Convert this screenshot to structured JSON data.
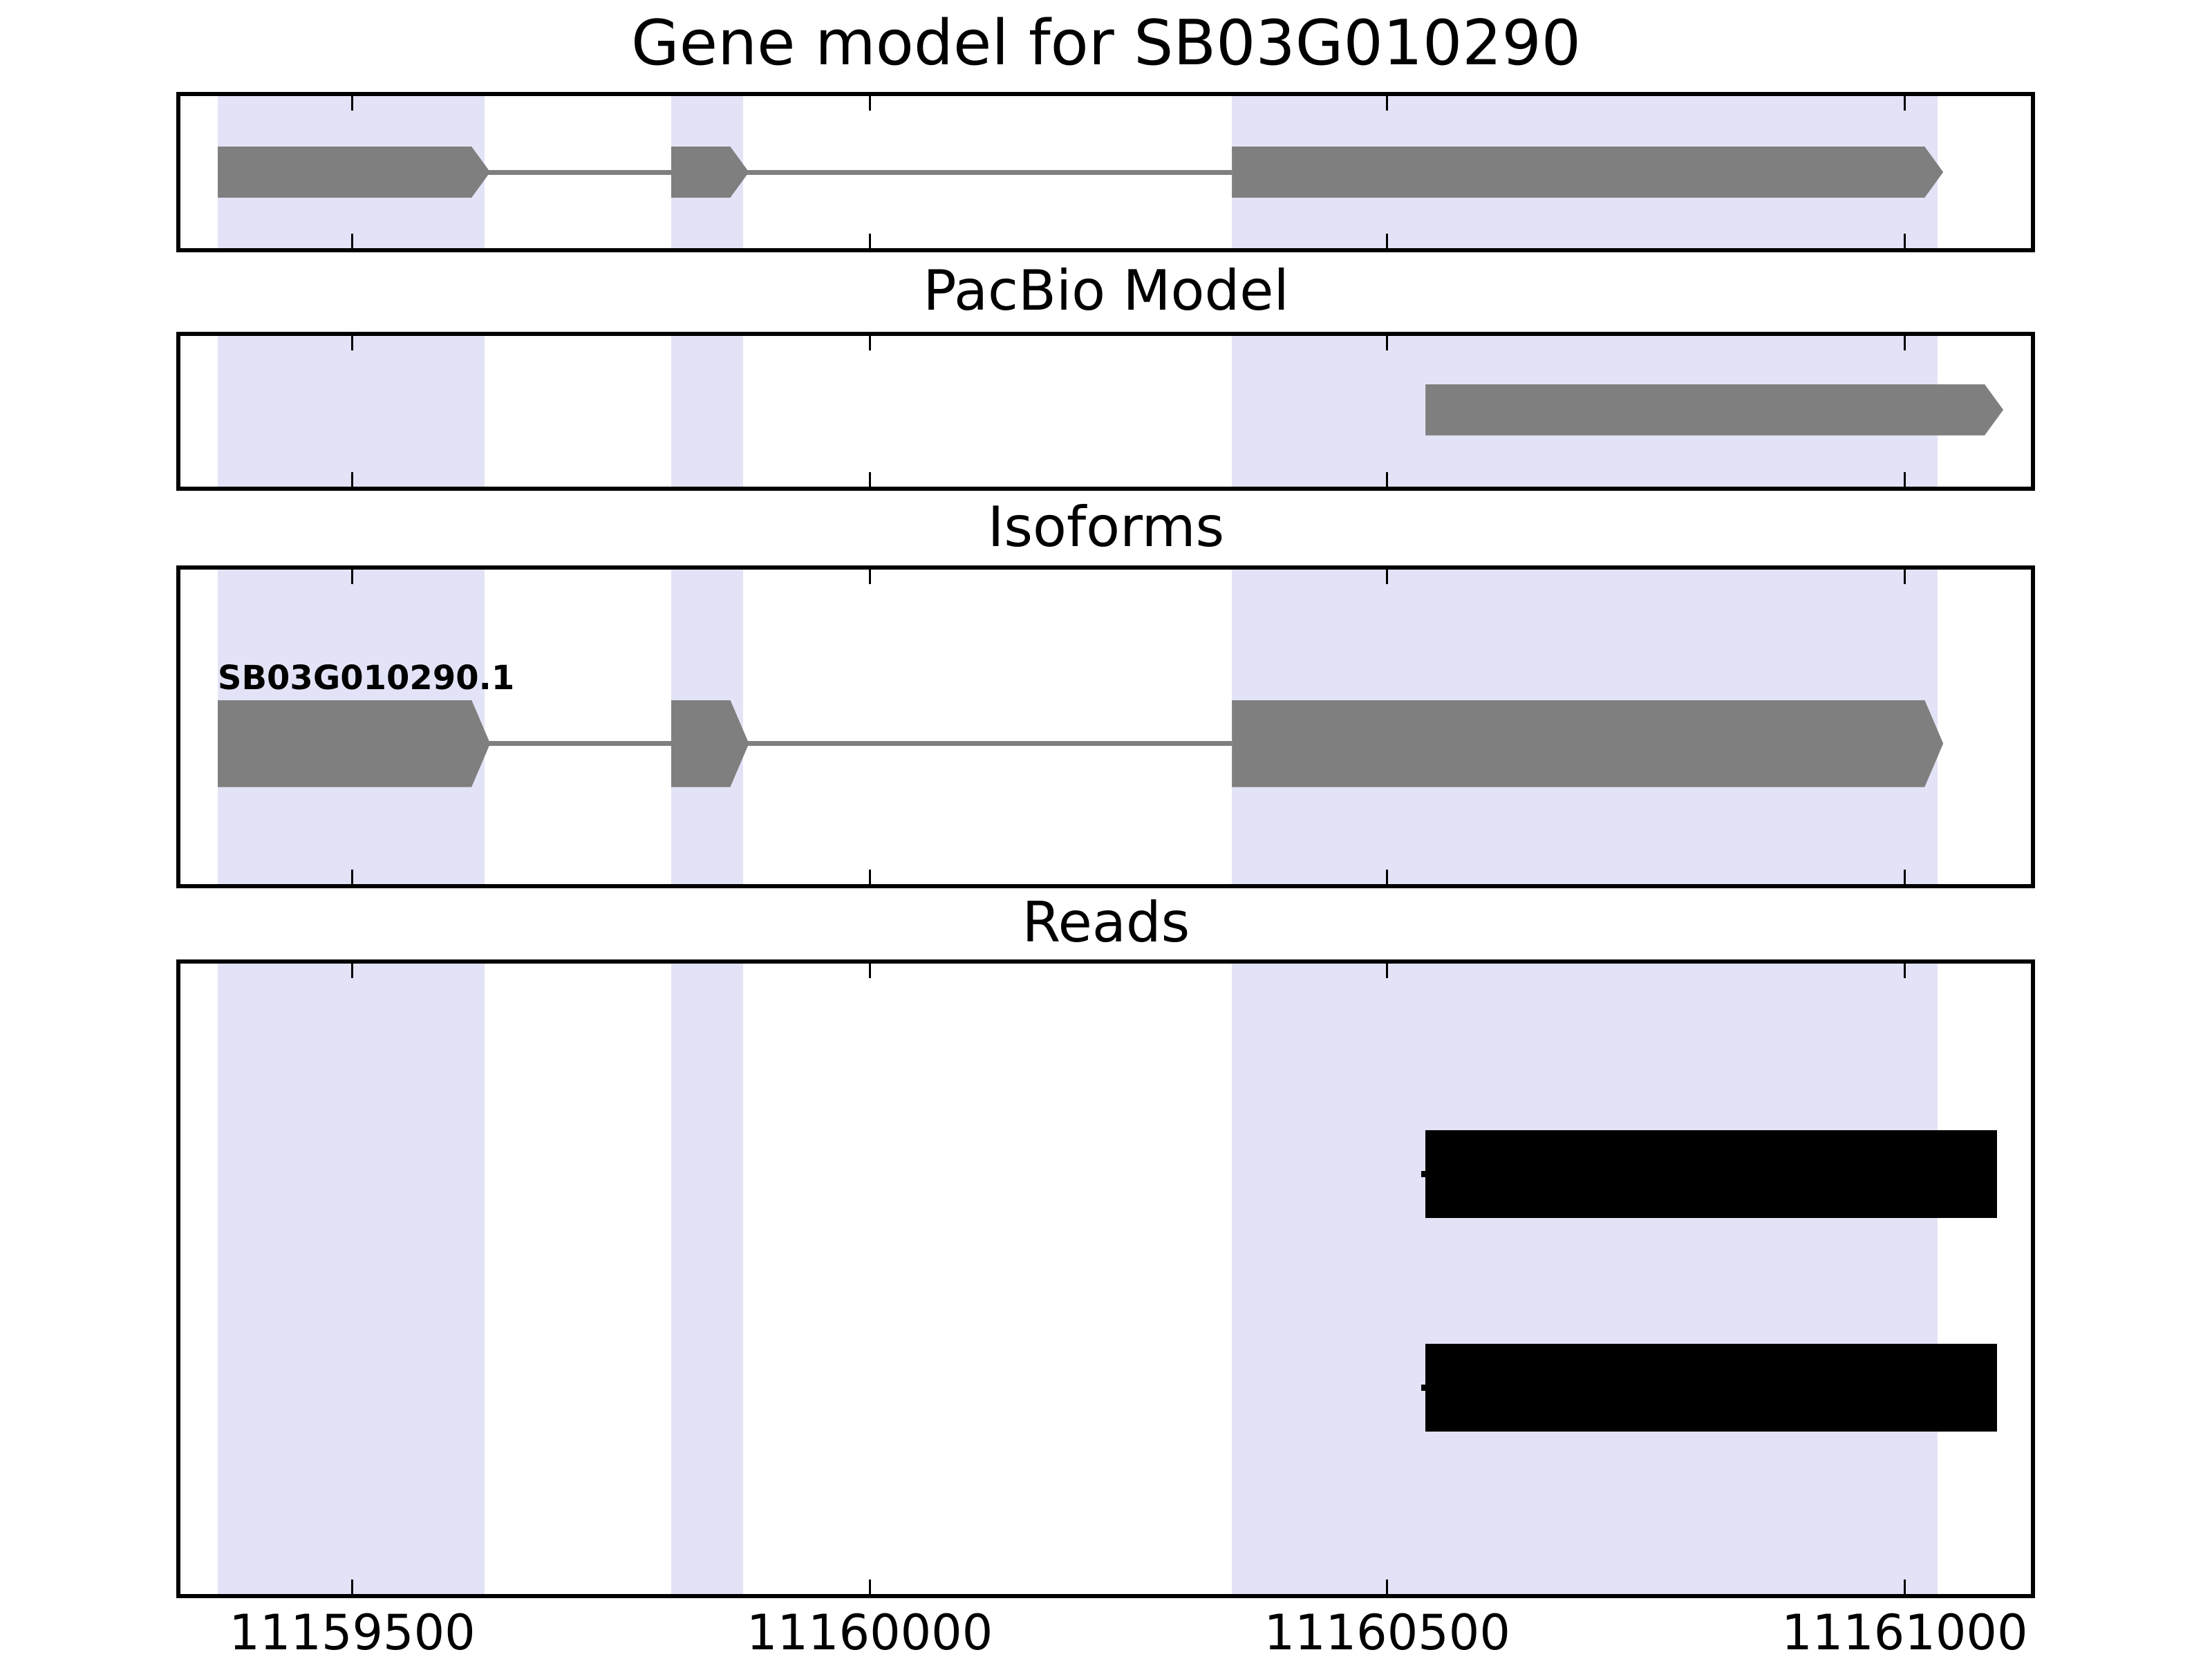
{
  "colors": {
    "background": "#ffffff",
    "highlight_band": "#e3e3f7",
    "feature_gray": "#7f7f7f",
    "read_black": "#000000",
    "axis_black": "#000000",
    "text": "#000000"
  },
  "chart_data": {
    "type": "genome-tracks",
    "title": "Gene model for SB03G010290",
    "x_axis": {
      "domain": [
        11159330,
        11161126
      ],
      "tick_values": [
        11159500,
        11160000,
        11160500,
        11161000
      ],
      "tick_labels": [
        "11159500",
        "11160000",
        "11160500",
        "11161000"
      ],
      "grid": false
    },
    "highlight_regions": [
      {
        "start": 11159370,
        "end": 11159628
      },
      {
        "start": 11159808,
        "end": 11159878
      },
      {
        "start": 11160350,
        "end": 11161032
      }
    ],
    "tracks": [
      {
        "id": "gene_model",
        "title": "Gene model for SB03G010290",
        "type": "gene",
        "strand": "+",
        "exons": [
          [
            11159370,
            11159628
          ],
          [
            11159808,
            11159878
          ],
          [
            11160350,
            11161032
          ]
        ]
      },
      {
        "id": "pacbio_model",
        "title": "PacBio Model",
        "type": "transcript",
        "strand": "+",
        "exons": [
          [
            11160537,
            11161090
          ]
        ]
      },
      {
        "id": "isoforms",
        "title": "Isoforms",
        "type": "isoform-list",
        "isoforms": [
          {
            "name": "SB03G010290.1",
            "strand": "+",
            "exons": [
              [
                11159370,
                11159628
              ],
              [
                11159808,
                11159878
              ],
              [
                11160350,
                11161032
              ]
            ]
          }
        ]
      },
      {
        "id": "reads",
        "title": "Reads",
        "type": "reads",
        "reads": [
          {
            "start": 11160537,
            "end": 11161089
          },
          {
            "start": 11160537,
            "end": 11161089
          }
        ]
      }
    ]
  }
}
